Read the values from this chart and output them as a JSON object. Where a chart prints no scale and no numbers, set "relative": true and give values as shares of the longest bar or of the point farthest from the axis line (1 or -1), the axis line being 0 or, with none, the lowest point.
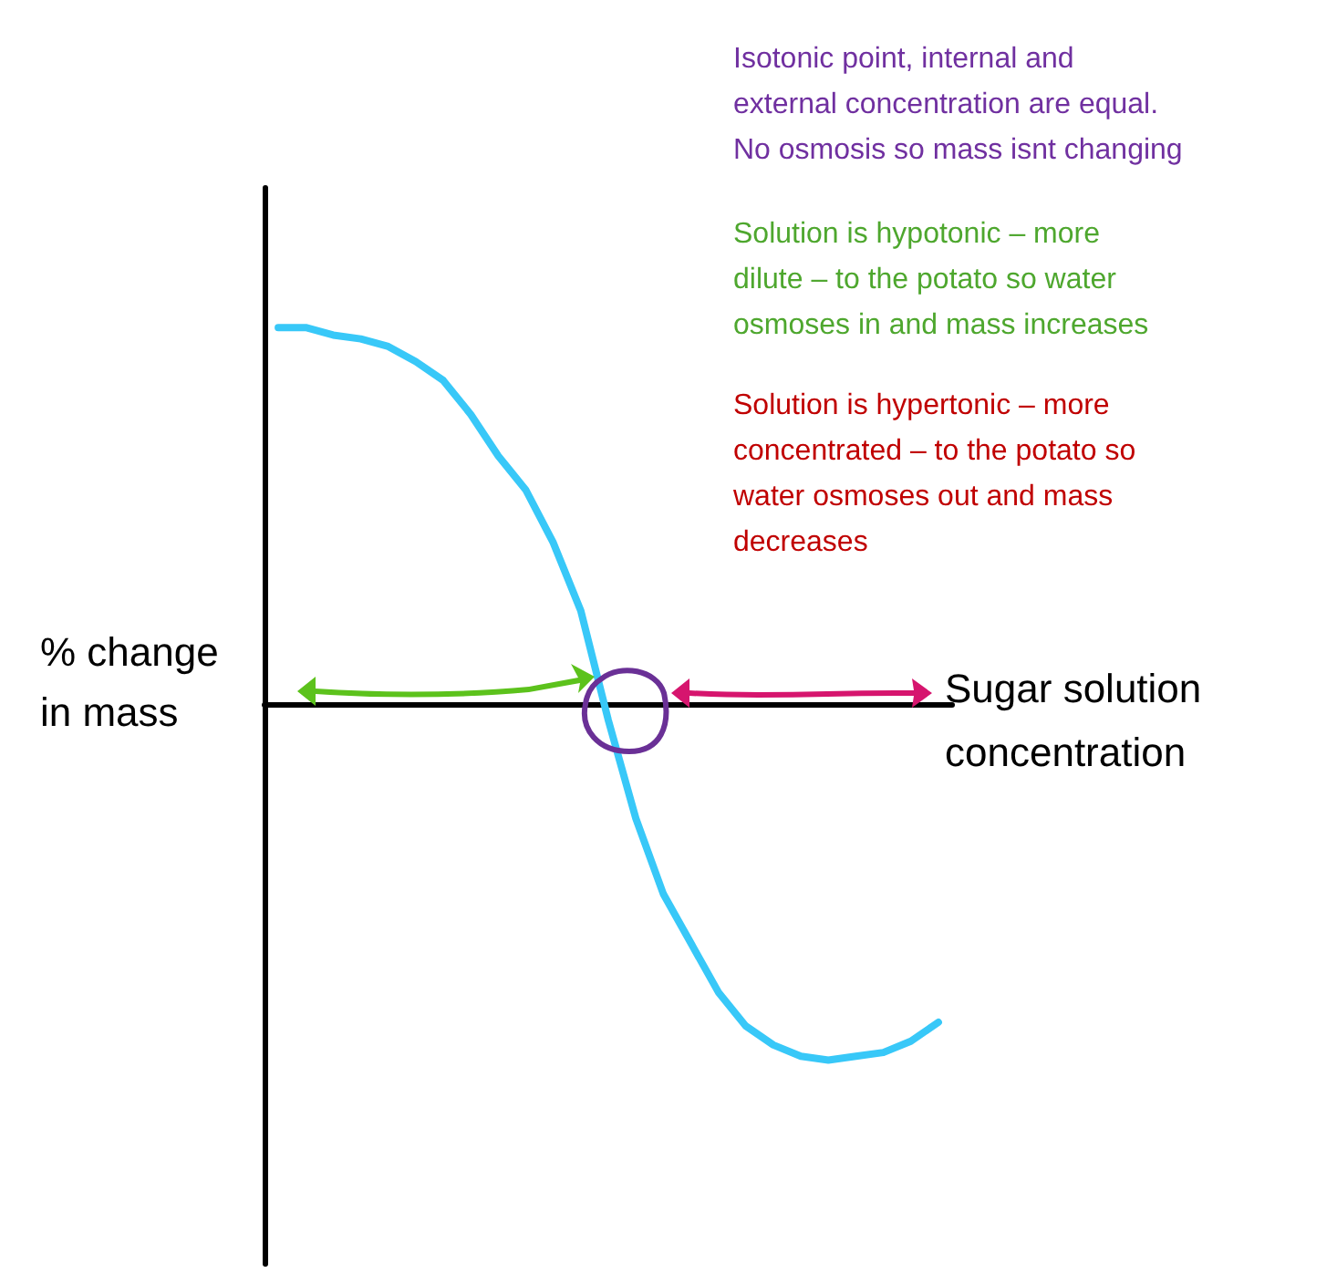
{
  "chart_data": {
    "type": "line",
    "relative": true,
    "xlabel": "Sugar solution concentration",
    "ylabel": "% change in mass",
    "categories": [
      null,
      null,
      null,
      null,
      null,
      null,
      null,
      null,
      null,
      null,
      null,
      null,
      null,
      null,
      null,
      null,
      null,
      null,
      null,
      null,
      null,
      null,
      null,
      null,
      null
    ],
    "series": [
      {
        "color": "#38c8f8",
        "values": [
          1,
          1,
          0.98,
          0.97,
          0.95,
          0.91,
          0.86,
          0.77,
          0.66,
          0.57,
          0.43,
          0.25,
          -0.04,
          -0.3,
          -0.5,
          -0.63,
          -0.76,
          -0.85,
          -0.9,
          -0.93,
          -0.94,
          -0.93,
          -0.92,
          -0.89,
          -0.84
        ]
      }
    ],
    "marker": "none",
    "grid": false,
    "annotations": [
      "Isotonic point, internal and external concentration are equal. No osmosis so mass isnt changing",
      "Solution is hypotonic – more dilute – to the potato so water osmoses in and mass increases",
      "Solution is hypertonic – more concentrated – to the potato so water osmoses out and mass decreases"
    ]
  }
}
